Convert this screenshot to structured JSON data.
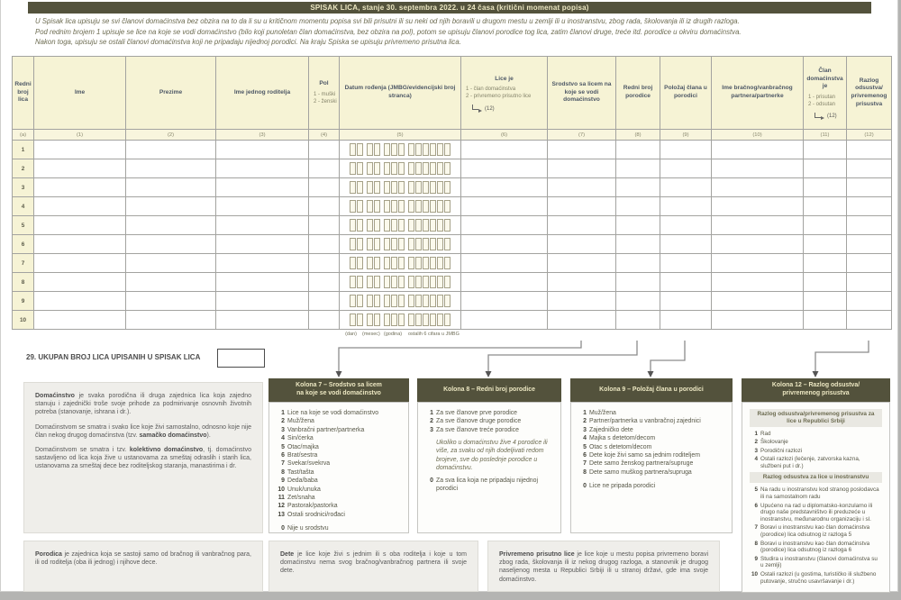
{
  "page_title": "SPISAK LICA, stanje 30. septembra 2022. u 24 časa (kritični momenat popisa)",
  "intro": {
    "line1": "U Spisak lica upisuju se svi članovi domaćinstva bez obzira na to da li su u kritičnom momentu popisa svi bili prisutni ili su neki od njih boravili u drugom mestu u zemlji ili u inostranstvu, zbog rada, školovanja ili iz drugih razloga.",
    "line2": "Pod rednim brojem 1 upisuje se lice na koje se vodi domaćinstvo (bilo koji punoletan član domaćinstva, bez obzira na pol), potom se upisuju članovi porodice tog lica, zatim članovi druge, treće itd. porodice u okviru domaćinstva.",
    "line3": "Nakon toga, upisuju se ostali članovi domaćinstva koji ne pripadaju nijednoj porodici. Na kraju Spiska se upisuju privremeno prisutna lica."
  },
  "table": {
    "headers": {
      "redni_broj": "Redni broj lica",
      "ime": "Ime",
      "prezime": "Prezime",
      "ime_roditelja": "Ime jednog roditelja",
      "pol": {
        "title": "Pol",
        "opt1": "1 - muški",
        "opt2": "2 - ženski"
      },
      "datum": "Datum rođenja (JMBG/evidencijski broj stranca)",
      "lice_je": {
        "title": "Lice je",
        "opt1": "1 - član domaćinstva",
        "opt2": "2 - privremeno prisutno lice",
        "goto": "(12)"
      },
      "srodstvo": "Srodstvo sa licem na koje se vodi domaćinstvo",
      "redni_broj_porodice": "Redni broj porodice",
      "polozaj": "Položaj člana u porodici",
      "ime_partnera": "Ime bračnog/vanbračnog partnera/partnerke",
      "clan_domacinstva": {
        "title": "Član domaćinstva je",
        "opt1": "1 - prisutan",
        "opt2": "2 - odsutan",
        "goto": "(12)"
      },
      "razlog": "Razlog odsustva/ privremenog prisustva"
    },
    "col_nums": [
      "(a)",
      "(1)",
      "(2)",
      "(3)",
      "(4)",
      "(5)",
      "(6)",
      "(7)",
      "(8)",
      "(9)",
      "(10)",
      "(11)",
      "(12)"
    ],
    "row_numbers": [
      "1",
      "2",
      "3",
      "4",
      "5",
      "6",
      "7",
      "8",
      "9",
      "10"
    ],
    "jmbg_groups": [
      2,
      2,
      3,
      6
    ],
    "jmbg_labels": [
      "(dan)",
      "(mesec)",
      "(godina)",
      "ostalih 6 cifara u JMBG"
    ]
  },
  "total_line": {
    "label": "29. UKUPAN BROJ LICA UPISANIH U SPISAK LICA",
    "value": ""
  },
  "boxes": {
    "domacinstvo": {
      "p1_bold": "Domaćinstvo",
      "p1_rest": " je svaka porodična ili druga zajednica lica koja zajedno stanuju i zajednički troše svoje prihode za podmirivanje osnovnih životnih potreba (stanovanje, ishrana i dr.).",
      "p2_pre": "Domaćinstvom se smatra i svako lice koje živi samostalno, odnosno koje nije član nekog drugog domaćinstva (tzv. ",
      "p2_bold": "samačko domaćinstvo",
      "p2_post": ").",
      "p3_pre": "Domaćinstvom se smatra i tzv. ",
      "p3_bold": "kolektivno domaćinstvo",
      "p3_post": ", tj. domaćinstvo sastavljeno od lica koja žive u ustanovama za smeštaj odraslih i starih lica, ustanovama za smeštaj dece bez roditeljskog staranja, manastirima i dr."
    },
    "kolona7": {
      "title": "Kolona 7 – Srodstvo sa licem\nna koje se vodi domaćinstvo",
      "items": [
        {
          "num": "1",
          "text": "Lice na koje se vodi domaćinstvo"
        },
        {
          "num": "2",
          "text": "Muž/žena"
        },
        {
          "num": "3",
          "text": "Vanbračni partner/partnerka"
        },
        {
          "num": "4",
          "text": "Sin/ćerka"
        },
        {
          "num": "5",
          "text": "Otac/majka"
        },
        {
          "num": "6",
          "text": "Brat/sestra"
        },
        {
          "num": "7",
          "text": "Svekar/svekrva"
        },
        {
          "num": "8",
          "text": "Tast/tašta"
        },
        {
          "num": "9",
          "text": "Deda/baba"
        },
        {
          "num": "10",
          "text": "Unuk/unuka"
        },
        {
          "num": "11",
          "text": "Zet/snaha"
        },
        {
          "num": "12",
          "text": "Pastorak/pastorka"
        },
        {
          "num": "13",
          "text": "Ostali srodnici/rođaci"
        }
      ],
      "zero": {
        "num": "0",
        "text": "Nije u srodstvu"
      }
    },
    "kolona8": {
      "title": "Kolona 8 – Redni broj porodice",
      "items": [
        {
          "num": "1",
          "text": "Za sve članove prve porodice"
        },
        {
          "num": "2",
          "text": "Za sve članove druge porodice"
        },
        {
          "num": "3",
          "text": "Za sve članove treće porodice"
        }
      ],
      "note": "Ukoliko u domaćinstvu žive 4 porodice ili više, za svaku od njih dodeljivati redom brojeve, sve do poslednje porodice u domaćinstvu.",
      "zero": {
        "num": "0",
        "text": "Za sva lica koja ne pripadaju nijednoj porodici"
      }
    },
    "kolona9": {
      "title": "Kolona 9 – Položaj člana u porodici",
      "items": [
        {
          "num": "1",
          "text": "Muž/žena"
        },
        {
          "num": "2",
          "text": "Partner/partnerka u vanbračnoj zajednici"
        },
        {
          "num": "3",
          "text": "Zajedničko dete"
        },
        {
          "num": "4",
          "text": "Majka s detetom/decom"
        },
        {
          "num": "5",
          "text": "Otac s detetom/decom"
        },
        {
          "num": "6",
          "text": "Dete koje živi samo sa jednim roditeljem"
        },
        {
          "num": "7",
          "text": "Dete samo ženskog partnera/supruge"
        },
        {
          "num": "8",
          "text": "Dete samo muškog partnera/supruga"
        }
      ],
      "zero": {
        "num": "0",
        "text": "Lice ne pripada porodici"
      }
    },
    "kolona12": {
      "title": "Kolona 12 – Razlog odsustva/\nprivremenog prisustva",
      "subhead1": "Razlog odsustva/privremenog prisustva za lice u Republici Srbiji",
      "items_srbija": [
        {
          "num": "1",
          "text": "Rad"
        },
        {
          "num": "2",
          "text": "Školovanje"
        },
        {
          "num": "3",
          "text": "Porodični razlozi"
        },
        {
          "num": "4",
          "text": "Ostali razlozi (lečenje, zatvorska kazna, službeni put i dr.)"
        }
      ],
      "subhead2": "Razlog odsustva za lice u inostranstvu",
      "items_inostranstvo": [
        {
          "num": "5",
          "text": "Na radu u inostranstvu kod stranog poslodavca ili na samostalnom radu"
        },
        {
          "num": "6",
          "text": "Upućeno na rad u diplomatsko-konzularno ili drugo naše predstavništvo ili preduzeće u inostranstvu, međunarodnu organizaciju i sl."
        },
        {
          "num": "7",
          "text": "Boravi u inostranstvu kao član domaćinstva (porodice) lica odsutnog iz razloga 5"
        },
        {
          "num": "8",
          "text": "Boravi u inostranstvu kao član domaćinstva (porodice) lica odsutnog iz razloga 6"
        },
        {
          "num": "9",
          "text": "Studira u inostranstvu (članovi domaćinstva su u zemlji)"
        },
        {
          "num": "10",
          "text": "Ostali razlozi (u gostima, turističko ili službeno putovanje, stručno usavršavanje i dr.)"
        }
      ]
    },
    "porodica": {
      "bold": "Porodica",
      "rest": " je zajednica koja se sastoji samo od bračnog ili vanbračnog para, ili od roditelja (oba ili jednog) i njihove dece."
    },
    "dete": {
      "bold": "Dete",
      "rest": " je lice koje živi s jednim ili s oba roditelja i koje u tom domaćinstvu nema svog bračnog/vanbračnog partnera ili svoje dete."
    },
    "privremeno": {
      "bold": "Privremeno prisutno lice",
      "rest": " je lice koje u mestu popisa privremeno boravi zbog rada, školovanja ili iz nekog drugog razloga, a stanovnik je drugog naseljenog mesta u Republici Srbiji ili u stranoj državi, gde ima svoje domaćinstvo."
    }
  }
}
